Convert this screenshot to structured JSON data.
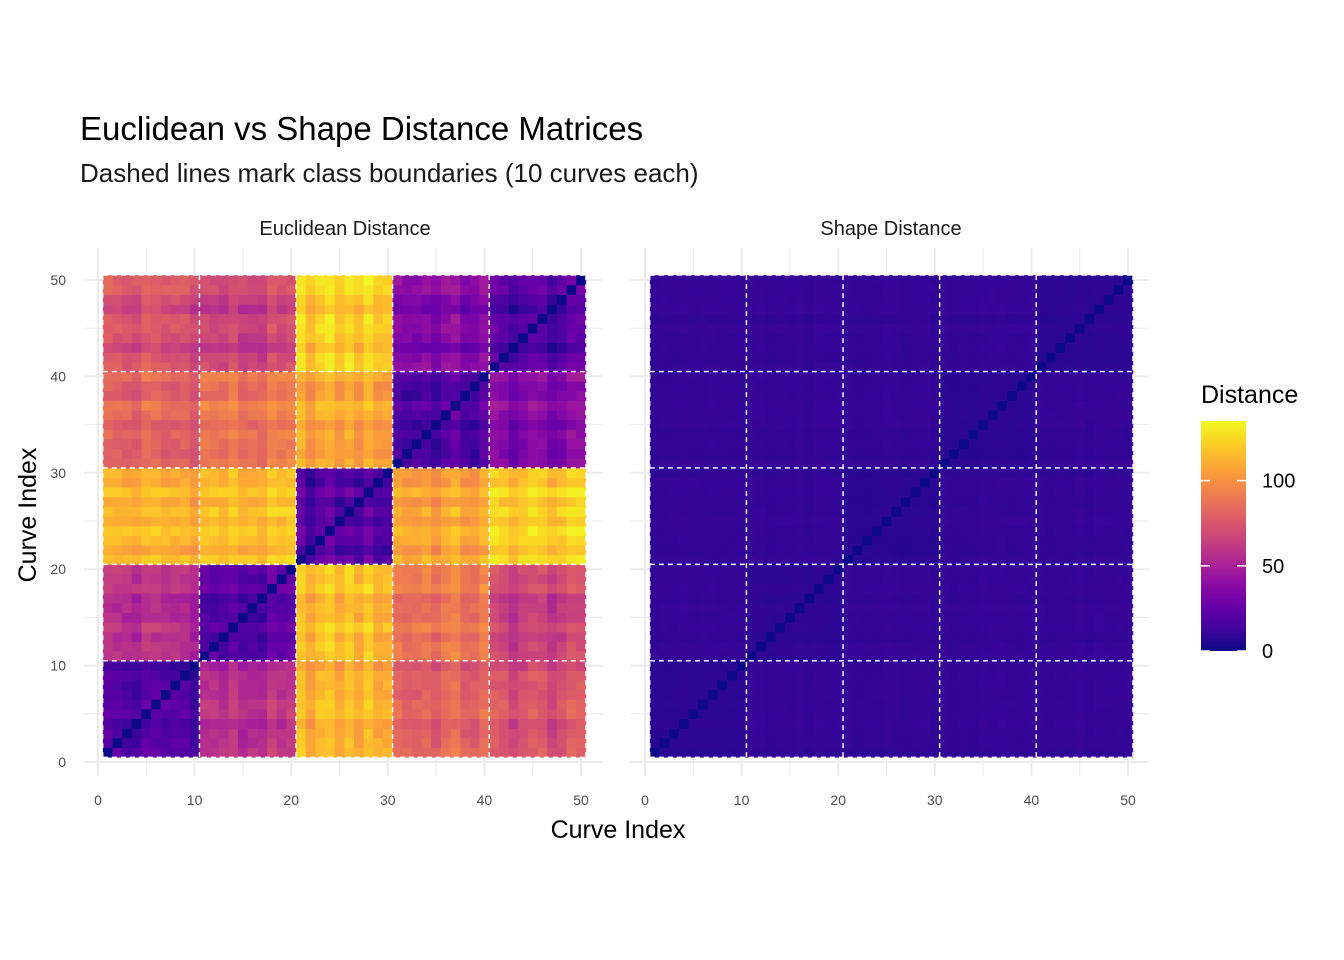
{
  "title": "Euclidean vs Shape Distance Matrices",
  "subtitle": "Dashed lines mark class boundaries (10 curves each)",
  "chart_data": {
    "type": "heatmap",
    "xlabel": "Curve Index",
    "ylabel": "Curve Index",
    "n_curves": 50,
    "class_size": 10,
    "class_boundaries": [
      10.5,
      20.5,
      30.5,
      40.5
    ],
    "xlim": [
      0,
      50
    ],
    "ylim": [
      0,
      50
    ],
    "x_ticks": [
      "0",
      "10",
      "20",
      "30",
      "40",
      "50"
    ],
    "y_ticks": [
      "0",
      "10",
      "20",
      "30",
      "40",
      "50"
    ],
    "grid": true,
    "colorscale": "plasma",
    "colors": {
      "low": "#0d0887",
      "mid": "#9c179e",
      "high": "#f0f921"
    },
    "legend": {
      "title": "Distance",
      "position": "right",
      "range": [
        0,
        135
      ],
      "ticks": [
        "0",
        "50",
        "100"
      ]
    },
    "panels": [
      {
        "name": "Euclidean Distance",
        "diagonal": 0,
        "class_block_means": [
          [
            18,
            55,
            112,
            80,
            72
          ],
          [
            55,
            18,
            115,
            88,
            64
          ],
          [
            112,
            115,
            20,
            107,
            120
          ],
          [
            80,
            88,
            107,
            18,
            35
          ],
          [
            72,
            64,
            120,
            35,
            18
          ]
        ]
      },
      {
        "name": "Shape Distance",
        "diagonal": 0,
        "class_block_means": [
          [
            8,
            10,
            10,
            10,
            10
          ],
          [
            10,
            8,
            10,
            10,
            10
          ],
          [
            10,
            10,
            8,
            10,
            10
          ],
          [
            10,
            10,
            10,
            8,
            10
          ],
          [
            10,
            10,
            10,
            10,
            8
          ]
        ]
      }
    ]
  }
}
